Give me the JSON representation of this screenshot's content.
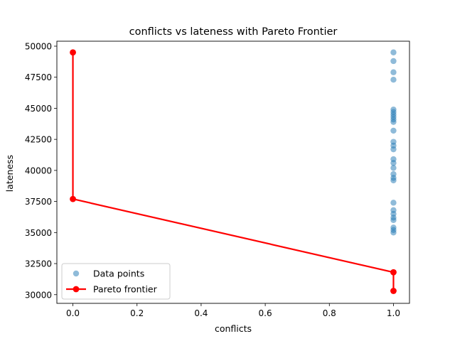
{
  "chart_data": {
    "type": "scatter",
    "title": "conflicts vs lateness with Pareto Frontier",
    "xlabel": "conflicts",
    "ylabel": "lateness",
    "xlim": [
      -0.05,
      1.05
    ],
    "ylim": [
      29300,
      50400
    ],
    "xticks": [
      0.0,
      0.2,
      0.4,
      0.6,
      0.8,
      1.0
    ],
    "xtick_labels": [
      "0.0",
      "0.2",
      "0.4",
      "0.6",
      "0.8",
      "1.0"
    ],
    "yticks": [
      30000,
      32500,
      35000,
      37500,
      40000,
      42500,
      45000,
      47500,
      50000
    ],
    "ytick_labels": [
      "30000",
      "32500",
      "35000",
      "37500",
      "40000",
      "42500",
      "45000",
      "47500",
      "50000"
    ],
    "grid": false,
    "legend_placement": "lower-left",
    "series": [
      {
        "name": "Data points",
        "kind": "scatter",
        "color": "#1f77b4",
        "points": [
          {
            "x": 1.0,
            "y": 49500
          },
          {
            "x": 1.0,
            "y": 48800
          },
          {
            "x": 1.0,
            "y": 47900
          },
          {
            "x": 1.0,
            "y": 47300
          },
          {
            "x": 1.0,
            "y": 44900
          },
          {
            "x": 1.0,
            "y": 44700
          },
          {
            "x": 1.0,
            "y": 44500
          },
          {
            "x": 1.0,
            "y": 44300
          },
          {
            "x": 1.0,
            "y": 44100
          },
          {
            "x": 1.0,
            "y": 43900
          },
          {
            "x": 1.0,
            "y": 43200
          },
          {
            "x": 1.0,
            "y": 42300
          },
          {
            "x": 1.0,
            "y": 42000
          },
          {
            "x": 1.0,
            "y": 41700
          },
          {
            "x": 1.0,
            "y": 40900
          },
          {
            "x": 1.0,
            "y": 40600
          },
          {
            "x": 1.0,
            "y": 40200
          },
          {
            "x": 1.0,
            "y": 39700
          },
          {
            "x": 1.0,
            "y": 39400
          },
          {
            "x": 1.0,
            "y": 39200
          },
          {
            "x": 1.0,
            "y": 37400
          },
          {
            "x": 1.0,
            "y": 36800
          },
          {
            "x": 1.0,
            "y": 36500
          },
          {
            "x": 1.0,
            "y": 36200
          },
          {
            "x": 1.0,
            "y": 36000
          },
          {
            "x": 1.0,
            "y": 35400
          },
          {
            "x": 1.0,
            "y": 35200
          },
          {
            "x": 1.0,
            "y": 35000
          },
          {
            "x": 1.0,
            "y": 31800
          },
          {
            "x": 1.0,
            "y": 30300
          }
        ]
      },
      {
        "name": "Pareto frontier",
        "kind": "line",
        "color": "#ff0000",
        "points": [
          {
            "x": 0.0,
            "y": 49500
          },
          {
            "x": 0.0,
            "y": 37700
          },
          {
            "x": 1.0,
            "y": 31800
          },
          {
            "x": 1.0,
            "y": 30300
          }
        ]
      }
    ]
  }
}
